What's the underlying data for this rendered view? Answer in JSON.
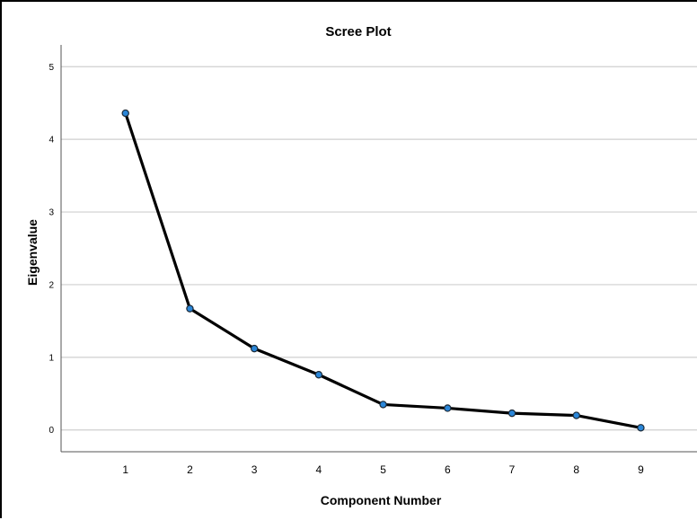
{
  "chart_data": {
    "type": "line",
    "title": "Scree Plot",
    "xlabel": "Component Number",
    "ylabel": "Eigenvalue",
    "x": [
      1,
      2,
      3,
      4,
      5,
      6,
      7,
      8,
      9
    ],
    "series": [
      {
        "values": [
          4.36,
          1.67,
          1.12,
          0.76,
          0.35,
          0.3,
          0.23,
          0.2,
          0.03
        ]
      }
    ],
    "yticks": [
      0,
      1,
      2,
      3,
      4,
      5
    ],
    "ylim": [
      -0.3,
      5.3
    ],
    "xlim": [
      0,
      9.9
    ],
    "grid": true,
    "colors": {
      "line": "#000000",
      "marker": "#2a86d8"
    }
  }
}
